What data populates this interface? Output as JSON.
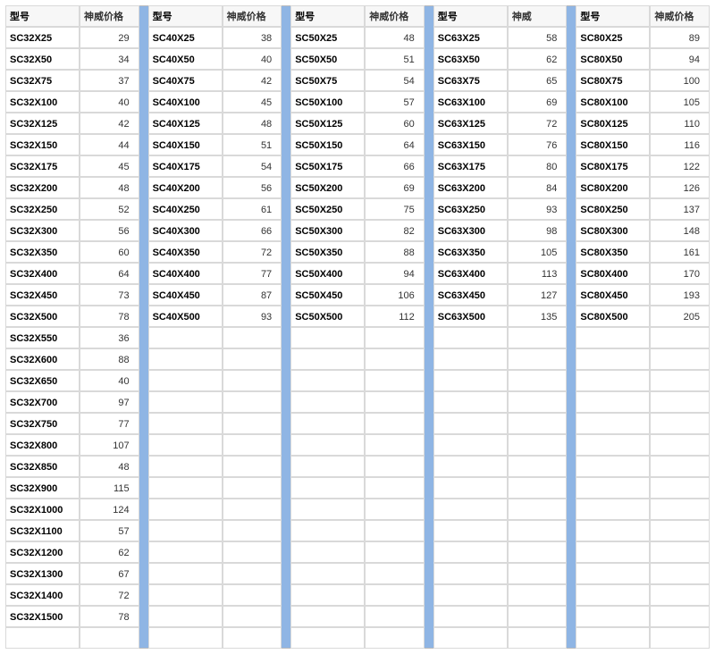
{
  "headers": {
    "model": "型号",
    "price_full": "神威价格",
    "price_short": "神威"
  },
  "separator_color": "#8fb5e4",
  "row_count": 29,
  "groups": [
    {
      "price_header": "price_full",
      "rows": [
        {
          "model": "SC32X25",
          "price": "29"
        },
        {
          "model": "SC32X50",
          "price": "34"
        },
        {
          "model": "SC32X75",
          "price": "37"
        },
        {
          "model": "SC32X100",
          "price": "40"
        },
        {
          "model": "SC32X125",
          "price": "42"
        },
        {
          "model": "SC32X150",
          "price": "44"
        },
        {
          "model": "SC32X175",
          "price": "45"
        },
        {
          "model": "SC32X200",
          "price": "48"
        },
        {
          "model": "SC32X250",
          "price": "52"
        },
        {
          "model": "SC32X300",
          "price": "56"
        },
        {
          "model": "SC32X350",
          "price": "60"
        },
        {
          "model": "SC32X400",
          "price": "64"
        },
        {
          "model": "SC32X450",
          "price": "73"
        },
        {
          "model": "SC32X500",
          "price": "78"
        },
        {
          "model": "SC32X550",
          "price": "36"
        },
        {
          "model": "SC32X600",
          "price": "88"
        },
        {
          "model": "SC32X650",
          "price": "40"
        },
        {
          "model": "SC32X700",
          "price": "97"
        },
        {
          "model": "SC32X750",
          "price": "77"
        },
        {
          "model": "SC32X800",
          "price": "107"
        },
        {
          "model": "SC32X850",
          "price": "48"
        },
        {
          "model": "SC32X900",
          "price": "115"
        },
        {
          "model": "SC32X1000",
          "price": "124"
        },
        {
          "model": "SC32X1100",
          "price": "57"
        },
        {
          "model": "SC32X1200",
          "price": "62"
        },
        {
          "model": "SC32X1300",
          "price": "67"
        },
        {
          "model": "SC32X1400",
          "price": "72"
        },
        {
          "model": "SC32X1500",
          "price": "78"
        }
      ]
    },
    {
      "price_header": "price_full",
      "rows": [
        {
          "model": "SC40X25",
          "price": "38"
        },
        {
          "model": "SC40X50",
          "price": "40"
        },
        {
          "model": "SC40X75",
          "price": "42"
        },
        {
          "model": "SC40X100",
          "price": "45"
        },
        {
          "model": "SC40X125",
          "price": "48"
        },
        {
          "model": "SC40X150",
          "price": "51"
        },
        {
          "model": "SC40X175",
          "price": "54"
        },
        {
          "model": "SC40X200",
          "price": "56"
        },
        {
          "model": "SC40X250",
          "price": "61"
        },
        {
          "model": "SC40X300",
          "price": "66"
        },
        {
          "model": "SC40X350",
          "price": "72"
        },
        {
          "model": "SC40X400",
          "price": "77"
        },
        {
          "model": "SC40X450",
          "price": "87"
        },
        {
          "model": "SC40X500",
          "price": "93"
        }
      ]
    },
    {
      "price_header": "price_full",
      "rows": [
        {
          "model": "SC50X25",
          "price": "48"
        },
        {
          "model": "SC50X50",
          "price": "51"
        },
        {
          "model": "SC50X75",
          "price": "54"
        },
        {
          "model": "SC50X100",
          "price": "57"
        },
        {
          "model": "SC50X125",
          "price": "60"
        },
        {
          "model": "SC50X150",
          "price": "64"
        },
        {
          "model": "SC50X175",
          "price": "66"
        },
        {
          "model": "SC50X200",
          "price": "69"
        },
        {
          "model": "SC50X250",
          "price": "75"
        },
        {
          "model": "SC50X300",
          "price": "82"
        },
        {
          "model": "SC50X350",
          "price": "88"
        },
        {
          "model": "SC50X400",
          "price": "94"
        },
        {
          "model": "SC50X450",
          "price": "106"
        },
        {
          "model": "SC50X500",
          "price": "112"
        }
      ]
    },
    {
      "price_header": "price_short",
      "rows": [
        {
          "model": "SC63X25",
          "price": "58"
        },
        {
          "model": "SC63X50",
          "price": "62"
        },
        {
          "model": "SC63X75",
          "price": "65"
        },
        {
          "model": "SC63X100",
          "price": "69"
        },
        {
          "model": "SC63X125",
          "price": "72"
        },
        {
          "model": "SC63X150",
          "price": "76"
        },
        {
          "model": "SC63X175",
          "price": "80"
        },
        {
          "model": "SC63X200",
          "price": "84"
        },
        {
          "model": "SC63X250",
          "price": "93"
        },
        {
          "model": "SC63X300",
          "price": "98"
        },
        {
          "model": "SC63X350",
          "price": "105"
        },
        {
          "model": "SC63X400",
          "price": "113"
        },
        {
          "model": "SC63X450",
          "price": "127"
        },
        {
          "model": "SC63X500",
          "price": "135"
        }
      ]
    },
    {
      "price_header": "price_full",
      "rows": [
        {
          "model": "SC80X25",
          "price": "89"
        },
        {
          "model": "SC80X50",
          "price": "94"
        },
        {
          "model": "SC80X75",
          "price": "100"
        },
        {
          "model": "SC80X100",
          "price": "105"
        },
        {
          "model": "SC80X125",
          "price": "110"
        },
        {
          "model": "SC80X150",
          "price": "116"
        },
        {
          "model": "SC80X175",
          "price": "122"
        },
        {
          "model": "SC80X200",
          "price": "126"
        },
        {
          "model": "SC80X250",
          "price": "137"
        },
        {
          "model": "SC80X300",
          "price": "148"
        },
        {
          "model": "SC80X350",
          "price": "161"
        },
        {
          "model": "SC80X400",
          "price": "170"
        },
        {
          "model": "SC80X450",
          "price": "193"
        },
        {
          "model": "SC80X500",
          "price": "205"
        }
      ]
    }
  ]
}
